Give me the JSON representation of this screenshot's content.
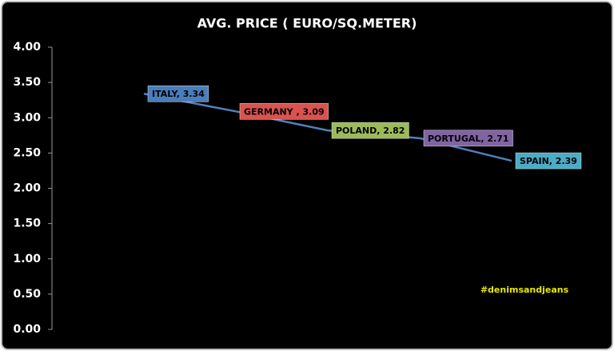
{
  "chart_data": {
    "type": "line",
    "title": "AVG. PRICE ( EURO/SQ.METER)",
    "categories": [
      "ITALY",
      "GERMANY",
      "POLAND",
      "PORTUGAL",
      "SPAIN"
    ],
    "values": [
      3.34,
      3.09,
      2.82,
      2.71,
      2.39
    ],
    "value_labels": [
      "ITALY, 3.34",
      "GERMANY , 3.09",
      "POLAND, 2.82",
      "PORTUGAL, 2.71",
      "SPAIN, 2.39"
    ],
    "color": "#4f81bd",
    "label_colors": [
      "#4a7ebb",
      "#d9534f",
      "#9bbb59",
      "#8064a2",
      "#4bacc6"
    ],
    "ylim": [
      0,
      4
    ],
    "yticks": [
      {
        "value": 0,
        "label": "0.00"
      },
      {
        "value": 0.5,
        "label": "0.50"
      },
      {
        "value": 1,
        "label": "1.00"
      },
      {
        "value": 1.5,
        "label": "1.50"
      },
      {
        "value": 2,
        "label": "2.00"
      },
      {
        "value": 2.5,
        "label": "2.50"
      },
      {
        "value": 3,
        "label": "3.00"
      },
      {
        "value": 3.5,
        "label": "3.50"
      },
      {
        "value": 4,
        "label": "4.00"
      }
    ],
    "grid": false,
    "annotation": "#denimsandjeans"
  }
}
